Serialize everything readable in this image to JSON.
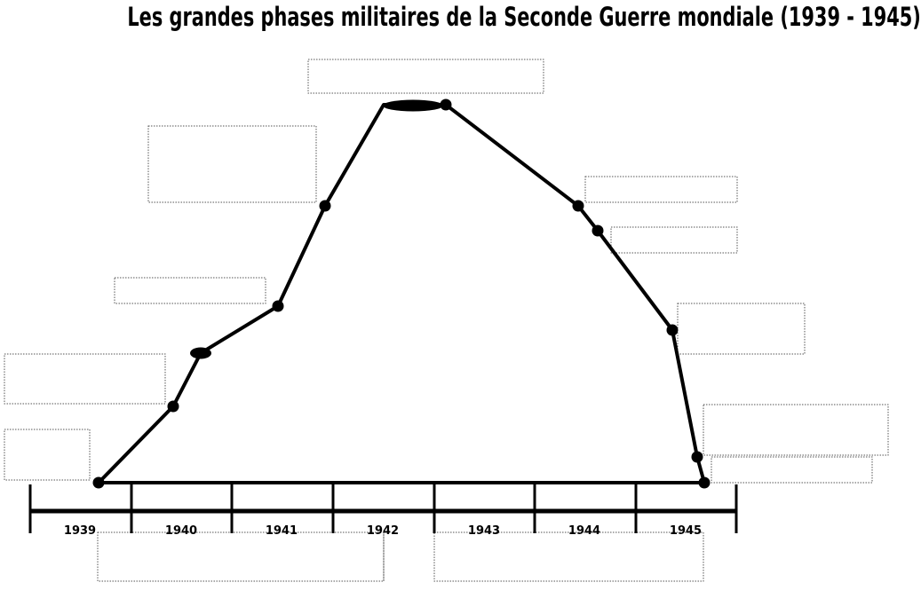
{
  "title": "Les grandes phases militaires de la Seconde Guerre mondiale (1939 - 1945)",
  "timeline": {
    "years": [
      "1939",
      "1940",
      "1941",
      "1942",
      "1943",
      "1944",
      "1945"
    ]
  },
  "colors": {
    "line": "#000000",
    "box_border": "#555555",
    "background": "#ffffff"
  }
}
